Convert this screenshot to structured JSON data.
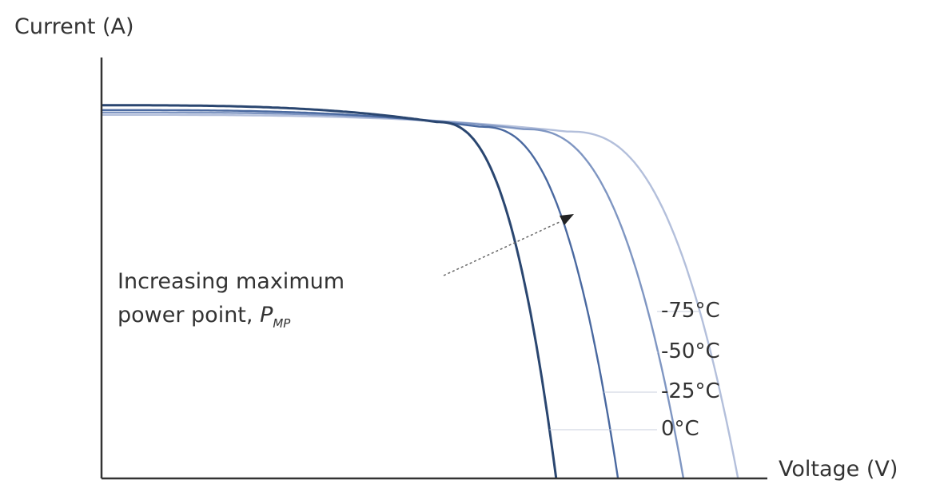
{
  "chart_data": {
    "type": "line",
    "title": "",
    "ylabel": "Current (A)",
    "xlabel": "Voltage (V)",
    "xlim": [
      0,
      1
    ],
    "ylim": [
      0,
      1
    ],
    "grid": false,
    "ticks": "none",
    "series": [
      {
        "name": "0°C",
        "color": "#2a4670",
        "isc": 0.78,
        "voc": 0.625,
        "knee": 0.46
      },
      {
        "name": "-25°C",
        "color": "#4a69a0",
        "isc": 0.77,
        "voc": 0.71,
        "knee": 0.52
      },
      {
        "name": "-50°C",
        "color": "#7f96c2",
        "isc": 0.765,
        "voc": 0.8,
        "knee": 0.58
      },
      {
        "name": "-75°C",
        "color": "#b3bfdb",
        "isc": 0.76,
        "voc": 0.875,
        "knee": 0.64
      }
    ],
    "annotation": {
      "line1": "Increasing maximum",
      "line2_prefix": "power point, ",
      "symbol": "P",
      "subscript": "MP"
    }
  }
}
